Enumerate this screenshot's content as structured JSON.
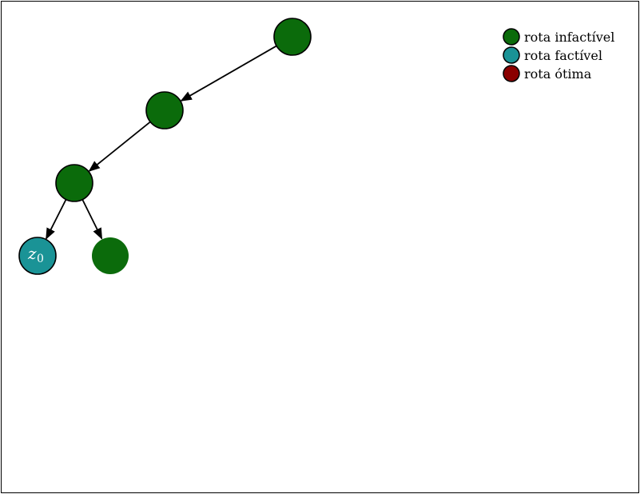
{
  "colors": {
    "infeasible": "#0b6b0b",
    "feasible": "#1a9396",
    "optimal": "#8b0000",
    "edge": "#000000"
  },
  "legend": {
    "items": [
      {
        "label": "rota infactível",
        "color": "#0b6b0b"
      },
      {
        "label": "rota factível",
        "color": "#1a9396"
      },
      {
        "label": "rota ótima",
        "color": "#8b0000"
      }
    ]
  },
  "tree": {
    "nodes": [
      {
        "id": "n1",
        "status": "infeasible",
        "label": ""
      },
      {
        "id": "n2",
        "status": "infeasible",
        "label": ""
      },
      {
        "id": "n3",
        "status": "infeasible",
        "label": ""
      },
      {
        "id": "n4",
        "status": "feasible",
        "label": "z",
        "sub": "0"
      },
      {
        "id": "n5",
        "status": "infeasible",
        "label": ""
      }
    ],
    "edges": [
      {
        "from": "n1",
        "to": "n2"
      },
      {
        "from": "n2",
        "to": "n3"
      },
      {
        "from": "n3",
        "to": "n4"
      },
      {
        "from": "n3",
        "to": "n5"
      }
    ]
  }
}
